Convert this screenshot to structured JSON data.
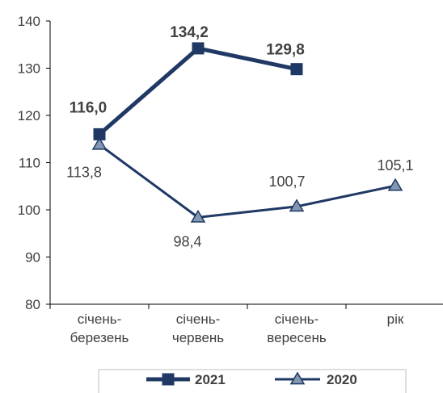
{
  "chart_data": {
    "type": "line",
    "categories": [
      [
        "січень-",
        "березень"
      ],
      [
        "січень-",
        "червень"
      ],
      [
        "січень-",
        "вересень"
      ],
      [
        "рік"
      ]
    ],
    "ylim": [
      80,
      140
    ],
    "yticks": [
      80,
      90,
      100,
      110,
      120,
      130,
      140
    ],
    "grid": false,
    "legend_position": "bottom",
    "series": [
      {
        "name": "2021",
        "values": [
          116.0,
          134.2,
          129.8,
          null
        ],
        "labels": [
          "116,0",
          "134,2",
          "129,8",
          ""
        ],
        "color": "#1f3864",
        "marker": "square"
      },
      {
        "name": "2020",
        "values": [
          113.8,
          98.4,
          100.7,
          105.1
        ],
        "labels": [
          "113,8",
          "98,4",
          "100,7",
          "105,1"
        ],
        "color": "#1f3864",
        "marker": "triangle"
      }
    ]
  }
}
